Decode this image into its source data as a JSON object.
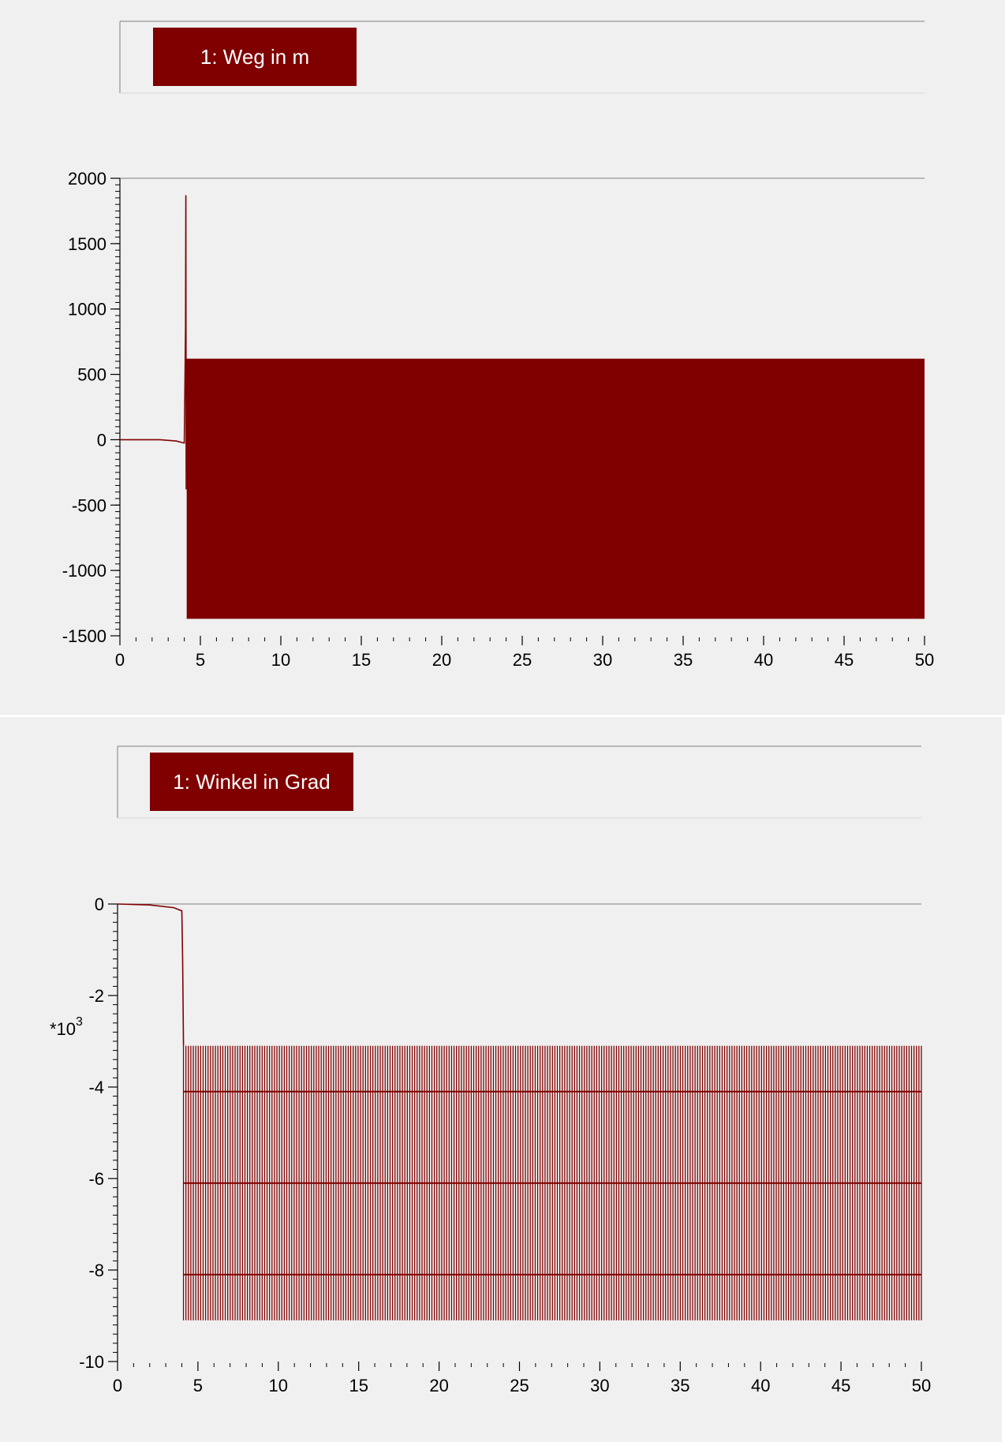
{
  "colors": {
    "background": "#f0f0f0",
    "series": "#800000",
    "legend_bg": "#800000",
    "legend_text": "#ffffff",
    "frame": "#808080"
  },
  "chart_data": [
    {
      "type": "line",
      "title": "",
      "series": [
        {
          "name": "1: Weg in m",
          "description": "flat near 0 until about t=4, spike to about 1870 at t≈4.1, then dense oscillation between about -1370 and 620 until t=50",
          "points": [
            [
              0,
              0
            ],
            [
              2.5,
              0
            ],
            [
              3.5,
              -10
            ],
            [
              4.0,
              -25
            ],
            [
              4.08,
              860
            ],
            [
              4.1,
              1870
            ],
            [
              4.12,
              -380
            ],
            [
              4.15,
              620
            ]
          ],
          "oscillation": {
            "x_start": 4.15,
            "x_end": 50,
            "y_min": -1370,
            "y_max": 620
          }
        }
      ],
      "xlabel": "",
      "ylabel": "",
      "xlim": [
        0,
        50
      ],
      "ylim": [
        -1500,
        2000
      ],
      "xticks": [
        0,
        5,
        10,
        15,
        20,
        25,
        30,
        35,
        40,
        45,
        50
      ],
      "yticks": [
        -1500,
        -1000,
        -500,
        0,
        500,
        1000,
        1500,
        2000
      ],
      "grid": false,
      "legend": "top-left"
    },
    {
      "type": "line",
      "title": "",
      "series": [
        {
          "name": "1: Winkel in Grad",
          "description": "decreases slowly from 0 to about -0.1 (x10^3) until t≈4, drops to about -3.1, then dense oscillation between about -3.1 and -9.1 (x10^3) until t=50",
          "points": [
            [
              0,
              0
            ],
            [
              2,
              -0.02
            ],
            [
              3.5,
              -0.08
            ],
            [
              4.0,
              -0.15
            ],
            [
              4.05,
              -1.2
            ],
            [
              4.1,
              -3.1
            ]
          ],
          "oscillation": {
            "x_start": 4.1,
            "x_end": 50,
            "y_min": -9.1,
            "y_max": -3.1,
            "bands": [
              -4.1,
              -6.1,
              -8.1
            ]
          }
        }
      ],
      "xlabel": "",
      "ylabel": "",
      "y_multiplier": "*10",
      "y_multiplier_exp": "3",
      "xlim": [
        0,
        50
      ],
      "ylim": [
        -10,
        0
      ],
      "xticks": [
        0,
        5,
        10,
        15,
        20,
        25,
        30,
        35,
        40,
        45,
        50
      ],
      "yticks": [
        -10,
        -8,
        -6,
        -4,
        -2,
        0
      ],
      "grid": false,
      "legend": "top-left"
    }
  ]
}
